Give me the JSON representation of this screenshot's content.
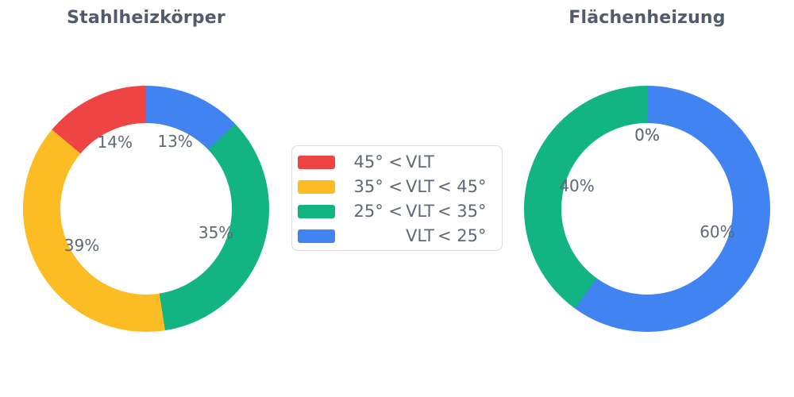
{
  "page": {
    "background": "#ffffff",
    "text_color": "#5e6879",
    "title_color": "#515b6b"
  },
  "legend": {
    "border_color": "#d8dce3",
    "items": [
      {
        "color": "#EF4444",
        "pre": "45° <",
        "vlt": "VLT",
        "post": ""
      },
      {
        "color": "#FBBC24",
        "pre": "35° <",
        "vlt": "VLT",
        "post": "< 45°"
      },
      {
        "color": "#12B581",
        "pre": "25° <",
        "vlt": "VLT",
        "post": "< 35°"
      },
      {
        "color": "#4183F0",
        "pre": "",
        "vlt": "VLT",
        "post": "< 25°"
      }
    ],
    "labels_full": [
      "45° < VLT",
      "35° < VLT < 45°",
      "25° < VLT < 35°",
      "VLT < 25°"
    ]
  },
  "chart_data": [
    {
      "type": "pie",
      "subtype": "donut",
      "title": "Stahlheizkörper",
      "labels": [
        "45° < VLT",
        "35° < VLT < 45°",
        "25° < VLT < 35°",
        "VLT < 25°"
      ],
      "values": [
        14,
        39,
        35,
        13
      ],
      "value_labels": [
        "14%",
        "39%",
        "35%",
        "13%"
      ],
      "colors": [
        "#EF4444",
        "#FBBC24",
        "#12B581",
        "#4183F0"
      ],
      "hole_ratio": 0.7,
      "startangle_deg": 90,
      "counterclock": true,
      "label_radius_ratio": 0.6,
      "legend_position": "center between the two charts"
    },
    {
      "type": "pie",
      "subtype": "donut",
      "title": "Flächenheizung",
      "labels": [
        "45° < VLT",
        "35° < VLT < 45°",
        "25° < VLT < 35°",
        "VLT < 25°"
      ],
      "values": [
        0,
        0,
        40,
        60
      ],
      "value_labels": [
        "0%",
        "0%",
        "40%",
        "60%"
      ],
      "colors": [
        "#EF4444",
        "#FBBC24",
        "#12B581",
        "#4183F0"
      ],
      "hole_ratio": 0.7,
      "startangle_deg": 90,
      "counterclock": true,
      "label_radius_ratio": 0.6,
      "legend_position": "center between the two charts"
    }
  ]
}
